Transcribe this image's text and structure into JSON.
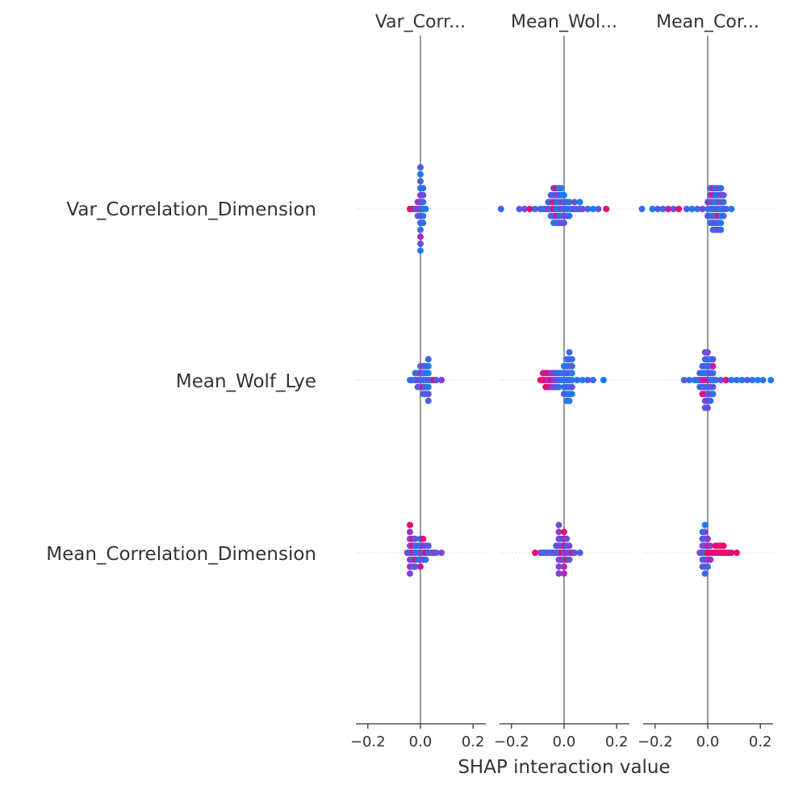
{
  "chart_data": {
    "type": "scatter",
    "subtype": "shap-interaction-beeswarm-grid",
    "xlabel": "SHAP interaction value",
    "xlim": [
      -0.25,
      0.25
    ],
    "xticks": [
      -0.2,
      0.0,
      0.2
    ],
    "xtick_labels": [
      "−0.2",
      "0.0",
      "0.2"
    ],
    "grid": false,
    "colormap": [
      "#008afb",
      "#5a57e0",
      "#a72ccb",
      "#ff0051"
    ],
    "column_titles": [
      "Var_Corr...",
      "Mean_Wol...",
      "Mean_Cor..."
    ],
    "rows": [
      "Var_Correlation_Dimension",
      "Mean_Wolf_Lye",
      "Mean_Correlation_Dimension"
    ],
    "cells": [
      {
        "row": "Var_Correlation_Dimension",
        "column": "Var_Corr...",
        "extent": [
          -0.05,
          0.02
        ],
        "x": [
          -0.04,
          -0.03,
          -0.02,
          -0.01,
          0.0,
          0.0,
          0.0,
          0.01,
          0.01,
          0.02,
          0.0,
          0.01,
          -0.01,
          0.0,
          0.0,
          0.01,
          0.0,
          0.0,
          0.0,
          0.01,
          -0.01,
          0.0,
          0.01,
          0.0,
          0.0,
          0.0
        ],
        "levels": [
          0.95,
          0.9,
          0.3,
          0.6,
          0.2,
          0.4,
          0.1,
          0.3,
          0.2,
          0.1,
          0.5,
          0.2,
          0.6,
          0.3,
          0.1,
          0.4,
          0.2,
          0.3,
          0.7,
          0.2,
          0.3,
          0.1,
          0.2,
          0.4,
          0.3,
          0.1
        ]
      },
      {
        "row": "Var_Correlation_Dimension",
        "column": "Mean_Wol...",
        "extent": [
          -0.24,
          0.16
        ],
        "x": [
          -0.24,
          -0.17,
          -0.15,
          -0.13,
          -0.11,
          -0.09,
          -0.08,
          -0.07,
          -0.06,
          -0.05,
          -0.04,
          -0.03,
          -0.02,
          -0.01,
          0.0,
          0.01,
          0.02,
          0.03,
          0.04,
          0.05,
          0.06,
          0.07,
          0.09,
          0.11,
          0.13,
          0.16,
          -0.06,
          -0.05,
          -0.04,
          -0.03,
          -0.02,
          -0.01,
          0.0,
          0.01,
          -0.05,
          -0.04,
          -0.03,
          -0.02,
          -0.01,
          0.0,
          -0.04,
          -0.03,
          -0.02,
          -0.01,
          -0.04,
          -0.03,
          -0.02,
          -0.01,
          0.0,
          0.01,
          0.02,
          -0.05,
          -0.04,
          -0.03,
          -0.02,
          -0.01,
          0.0,
          0.02,
          0.04,
          0.06
        ],
        "levels": [
          0.2,
          0.3,
          0.4,
          0.95,
          0.2,
          0.5,
          0.1,
          0.3,
          0.6,
          0.2,
          0.9,
          0.3,
          0.1,
          0.5,
          0.2,
          0.3,
          0.1,
          0.2,
          0.4,
          0.2,
          0.3,
          0.5,
          0.2,
          0.1,
          0.3,
          0.9,
          0.2,
          0.4,
          0.9,
          0.3,
          0.1,
          0.6,
          0.2,
          0.3,
          0.3,
          0.2,
          0.8,
          0.3,
          0.1,
          0.4,
          0.2,
          0.3,
          0.5,
          0.1,
          0.1,
          0.3,
          0.2,
          0.6,
          0.1,
          0.4,
          0.2,
          0.3,
          0.5,
          0.9,
          0.2,
          0.1,
          0.3,
          0.2,
          0.4,
          0.1
        ]
      },
      {
        "row": "Var_Correlation_Dimension",
        "column": "Mean_Cor...",
        "extent": [
          -0.25,
          0.1
        ],
        "x": [
          -0.25,
          -0.21,
          -0.19,
          -0.17,
          -0.15,
          -0.13,
          -0.11,
          -0.08,
          -0.06,
          -0.04,
          -0.02,
          0.0,
          0.01,
          0.02,
          0.03,
          0.04,
          0.05,
          0.06,
          0.07,
          0.09,
          0.0,
          0.01,
          0.02,
          0.03,
          0.04,
          0.05,
          0.06,
          0.01,
          0.02,
          0.03,
          0.04,
          0.05,
          0.0,
          0.01,
          0.02,
          0.03,
          0.04,
          0.05,
          0.06,
          0.01,
          0.02,
          0.03,
          0.04,
          0.05,
          0.06,
          0.01,
          0.02,
          0.03,
          0.04,
          0.05,
          0.02,
          0.03,
          0.04,
          0.05
        ],
        "levels": [
          0.2,
          0.1,
          0.3,
          0.2,
          0.8,
          0.4,
          0.9,
          0.3,
          0.1,
          0.2,
          0.5,
          0.2,
          0.1,
          0.4,
          0.2,
          0.3,
          0.1,
          0.2,
          0.3,
          0.1,
          0.3,
          0.7,
          0.2,
          0.1,
          0.3,
          0.5,
          0.2,
          0.1,
          0.3,
          0.2,
          0.9,
          0.1,
          0.3,
          0.4,
          0.8,
          0.2,
          0.1,
          0.6,
          0.2,
          0.1,
          0.3,
          0.5,
          0.2,
          0.1,
          0.3,
          0.2,
          0.7,
          0.1,
          0.4,
          0.2,
          0.3,
          0.1,
          0.5,
          0.2
        ]
      },
      {
        "row": "Mean_Wolf_Lye",
        "column": "Var_Corr...",
        "extent": [
          -0.04,
          0.08
        ],
        "x": [
          -0.04,
          -0.03,
          -0.02,
          -0.01,
          0.0,
          0.01,
          0.02,
          0.03,
          0.04,
          0.05,
          0.06,
          0.08,
          -0.02,
          -0.01,
          0.0,
          0.01,
          0.02,
          0.03,
          -0.01,
          0.0,
          0.01,
          0.02,
          0.03,
          0.0,
          0.01,
          0.02,
          0.03,
          0.01,
          0.02,
          0.03,
          0.03,
          0.03
        ],
        "levels": [
          0.1,
          0.3,
          0.2,
          0.5,
          0.3,
          0.1,
          0.2,
          0.4,
          0.2,
          0.9,
          0.3,
          0.5,
          0.2,
          0.1,
          0.7,
          0.3,
          0.2,
          0.1,
          0.4,
          0.3,
          0.8,
          0.2,
          0.1,
          0.3,
          0.5,
          0.2,
          0.1,
          0.3,
          0.2,
          0.4,
          0.2,
          0.3
        ]
      },
      {
        "row": "Mean_Wolf_Lye",
        "column": "Mean_Wol...",
        "extent": [
          -0.09,
          0.15
        ],
        "x": [
          -0.09,
          -0.08,
          -0.07,
          -0.06,
          -0.05,
          -0.04,
          -0.03,
          -0.02,
          -0.01,
          0.0,
          0.01,
          0.02,
          0.03,
          0.05,
          0.07,
          0.09,
          0.11,
          0.15,
          -0.08,
          -0.07,
          -0.06,
          -0.05,
          -0.04,
          -0.03,
          -0.02,
          -0.01,
          0.0,
          0.01,
          -0.07,
          -0.06,
          -0.05,
          -0.04,
          -0.03,
          -0.02,
          0.0,
          0.01,
          0.0,
          0.01,
          0.02,
          0.0,
          0.01,
          0.02,
          0.01,
          0.02,
          0.03,
          0.02,
          0.03,
          0.01,
          0.02,
          0.02,
          0.03,
          0.02,
          0.03,
          0.03
        ],
        "levels": [
          0.95,
          0.9,
          0.85,
          0.7,
          0.9,
          0.6,
          0.5,
          0.3,
          0.2,
          0.1,
          0.2,
          0.3,
          0.1,
          0.2,
          0.1,
          0.3,
          0.2,
          0.1,
          0.9,
          0.8,
          0.95,
          0.6,
          0.4,
          0.3,
          0.2,
          0.1,
          0.3,
          0.2,
          0.9,
          0.85,
          0.7,
          0.5,
          0.3,
          0.2,
          0.1,
          0.3,
          0.2,
          0.1,
          0.4,
          0.3,
          0.2,
          0.1,
          0.2,
          0.3,
          0.1,
          0.2,
          0.4,
          0.3,
          0.2,
          0.1,
          0.3,
          0.2,
          0.1,
          0.2
        ]
      },
      {
        "row": "Mean_Wolf_Lye",
        "column": "Mean_Cor...",
        "extent": [
          -0.09,
          0.24
        ],
        "x": [
          -0.09,
          -0.07,
          -0.05,
          -0.03,
          -0.01,
          0.0,
          0.01,
          0.02,
          0.03,
          0.05,
          0.07,
          0.09,
          0.11,
          0.13,
          0.15,
          0.17,
          0.19,
          0.21,
          0.24,
          -0.04,
          -0.03,
          -0.02,
          -0.01,
          0.0,
          0.01,
          0.02,
          -0.03,
          -0.02,
          -0.01,
          0.0,
          0.01,
          0.02,
          -0.02,
          -0.01,
          0.0,
          0.01,
          0.02,
          -0.02,
          -0.01,
          0.0,
          0.01,
          -0.02,
          -0.01,
          0.0,
          0.01,
          0.02,
          -0.01,
          0.0,
          0.01,
          0.02,
          -0.01,
          0.0,
          -0.01,
          0.0
        ],
        "levels": [
          0.3,
          0.2,
          0.1,
          0.5,
          0.2,
          0.9,
          0.3,
          0.1,
          0.2,
          0.4,
          0.9,
          0.1,
          0.2,
          0.1,
          0.3,
          0.2,
          0.1,
          0.2,
          0.1,
          0.2,
          0.4,
          0.8,
          0.3,
          0.1,
          0.5,
          0.2,
          0.3,
          0.1,
          0.7,
          0.2,
          0.4,
          0.3,
          0.2,
          0.5,
          0.3,
          0.1,
          0.8,
          0.3,
          0.1,
          0.2,
          0.4,
          0.9,
          0.2,
          0.3,
          0.1,
          0.2,
          0.4,
          0.6,
          0.2,
          0.3,
          0.4,
          0.5,
          0.3,
          0.4
        ]
      },
      {
        "row": "Mean_Correlation_Dimension",
        "column": "Var_Corr...",
        "extent": [
          -0.05,
          0.08
        ],
        "x": [
          -0.05,
          -0.04,
          -0.03,
          -0.02,
          -0.01,
          0.0,
          0.01,
          0.02,
          0.03,
          0.04,
          0.05,
          0.06,
          0.08,
          -0.04,
          -0.03,
          -0.02,
          -0.01,
          0.0,
          0.01,
          0.02,
          0.03,
          -0.04,
          -0.03,
          -0.02,
          -0.01,
          0.0,
          0.01,
          0.02,
          -0.04,
          -0.03,
          -0.02,
          0.0,
          0.01,
          -0.04,
          -0.03,
          -0.02,
          -0.04,
          0.0,
          -0.04,
          -0.04
        ],
        "levels": [
          0.5,
          0.2,
          0.8,
          0.3,
          0.1,
          0.6,
          0.2,
          0.9,
          0.4,
          0.2,
          0.7,
          0.3,
          0.5,
          0.5,
          0.9,
          0.3,
          0.2,
          0.1,
          0.7,
          0.4,
          0.3,
          0.6,
          0.2,
          0.9,
          0.3,
          0.1,
          0.5,
          0.2,
          0.6,
          0.8,
          0.3,
          0.2,
          0.9,
          0.7,
          0.4,
          0.3,
          0.6,
          0.8,
          0.5,
          0.9
        ]
      },
      {
        "row": "Mean_Correlation_Dimension",
        "column": "Mean_Wol...",
        "extent": [
          -0.11,
          0.06
        ],
        "x": [
          -0.11,
          -0.09,
          -0.08,
          -0.07,
          -0.06,
          -0.05,
          -0.04,
          -0.03,
          -0.02,
          -0.01,
          0.0,
          0.01,
          0.02,
          0.03,
          0.04,
          0.06,
          -0.03,
          -0.02,
          -0.01,
          0.0,
          0.01,
          0.02,
          -0.02,
          -0.01,
          0.0,
          0.01,
          0.02,
          -0.02,
          -0.01,
          0.0,
          0.01,
          -0.02,
          0.0,
          -0.02,
          0.0,
          -0.02,
          0.0,
          -0.02
        ],
        "levels": [
          0.95,
          0.5,
          0.3,
          0.2,
          0.4,
          0.1,
          0.6,
          0.2,
          0.3,
          0.9,
          0.5,
          0.7,
          0.3,
          0.8,
          0.4,
          0.3,
          0.2,
          0.6,
          0.3,
          0.8,
          0.2,
          0.5,
          0.4,
          0.7,
          0.2,
          0.9,
          0.3,
          0.6,
          0.2,
          0.8,
          0.4,
          0.5,
          0.7,
          0.6,
          0.9,
          0.5,
          0.7,
          0.4
        ]
      },
      {
        "row": "Mean_Correlation_Dimension",
        "column": "Mean_Cor...",
        "extent": [
          -0.03,
          0.11
        ],
        "x": [
          -0.03,
          -0.02,
          -0.01,
          0.0,
          0.01,
          0.02,
          0.03,
          0.04,
          0.05,
          0.06,
          0.07,
          0.08,
          0.09,
          0.11,
          -0.02,
          -0.01,
          0.0,
          0.01,
          0.03,
          0.04,
          0.05,
          0.06,
          -0.02,
          -0.01,
          0.0,
          0.01,
          -0.02,
          -0.01,
          0.0,
          -0.02,
          -0.01,
          0.0,
          -0.02,
          -0.01,
          -0.01,
          -0.01
        ],
        "levels": [
          0.5,
          0.3,
          0.2,
          0.95,
          0.9,
          0.95,
          0.9,
          0.85,
          0.95,
          0.9,
          0.95,
          0.85,
          0.9,
          0.9,
          0.6,
          0.3,
          0.8,
          0.5,
          0.95,
          0.9,
          0.9,
          0.95,
          0.2,
          0.5,
          0.3,
          0.7,
          0.4,
          0.2,
          0.6,
          0.3,
          0.5,
          0.2,
          0.1,
          0.4,
          0.2,
          0.1
        ]
      }
    ]
  }
}
